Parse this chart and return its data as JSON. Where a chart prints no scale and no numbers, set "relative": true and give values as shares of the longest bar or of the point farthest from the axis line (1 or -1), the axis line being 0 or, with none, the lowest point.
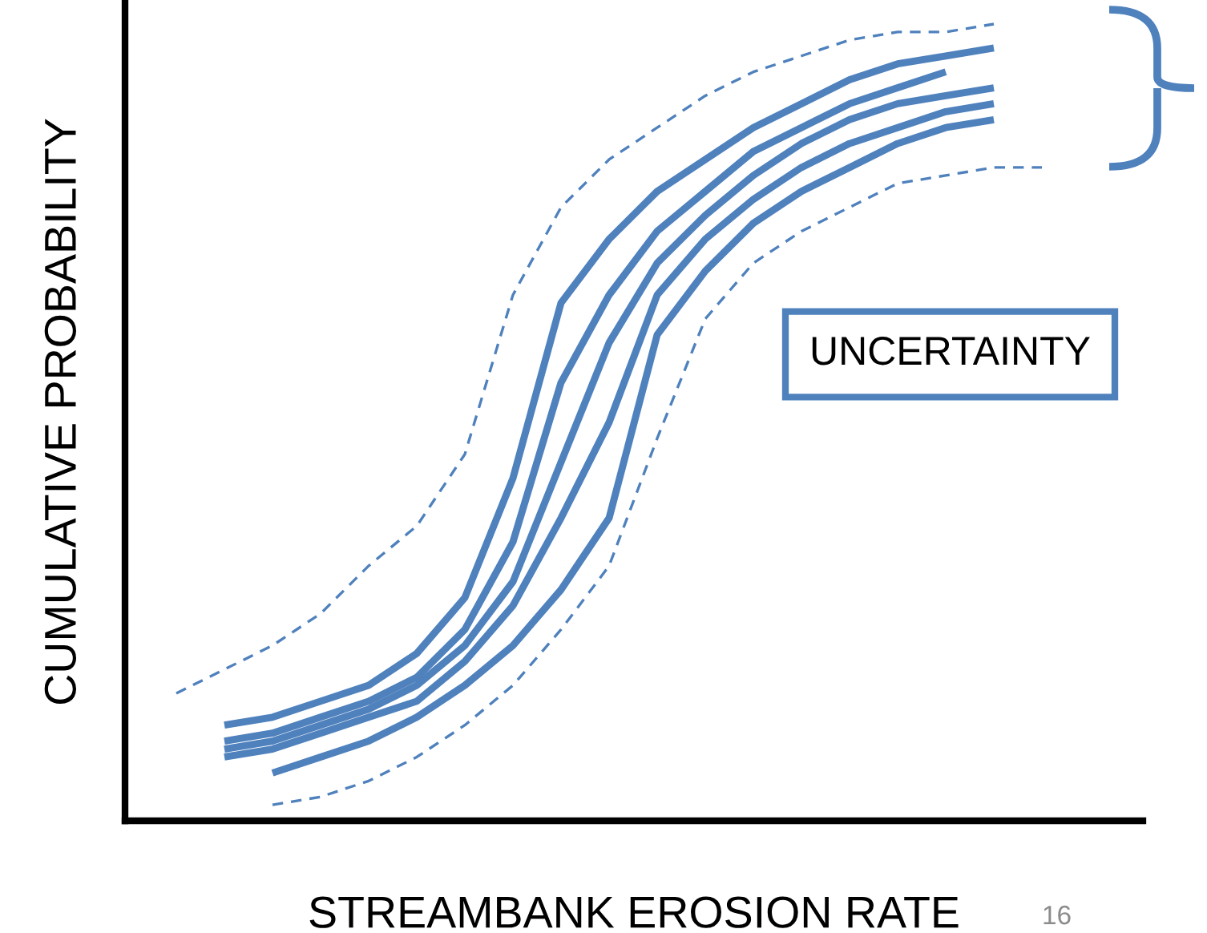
{
  "chart_data": {
    "type": "line",
    "relative": true,
    "legend": false,
    "grid": false,
    "marker": "none",
    "xlabel": "STREAMBANK EROSION RATE",
    "ylabel": "CUMULATIVE PROBABILITY",
    "annotations": [
      "UNCERTAINTY",
      "16"
    ],
    "categories": [
      null,
      null,
      null,
      null,
      null,
      null,
      null,
      null,
      null,
      null,
      null,
      null,
      null,
      null,
      null,
      null,
      null,
      null,
      null
    ],
    "series": [
      {
        "color": "#4f81bd",
        "line_style": "dashed",
        "values": [
          0.16,
          0.19,
          0.22,
          0.26,
          0.32,
          0.37,
          0.46,
          0.66,
          0.77,
          0.83,
          0.87,
          0.91,
          0.94,
          0.96,
          0.98,
          0.99,
          0.99,
          1.0,
          null
        ]
      },
      {
        "color": "#4f81bd",
        "line_style": "solid",
        "values": [
          null,
          0.12,
          0.13,
          0.15,
          0.17,
          0.21,
          0.28,
          0.43,
          0.65,
          0.73,
          0.79,
          0.83,
          0.87,
          0.9,
          0.93,
          0.95,
          0.96,
          0.97,
          null
        ]
      },
      {
        "color": "#4f81bd",
        "line_style": "solid",
        "values": [
          null,
          0.1,
          0.11,
          0.13,
          0.15,
          0.18,
          0.24,
          0.35,
          0.55,
          0.66,
          0.74,
          0.79,
          0.84,
          0.87,
          0.9,
          0.92,
          0.94,
          null,
          null
        ]
      },
      {
        "color": "#4f81bd",
        "line_style": "solid",
        "values": [
          null,
          0.09,
          0.1,
          0.12,
          0.14,
          0.17,
          0.22,
          0.3,
          0.45,
          0.6,
          0.7,
          0.76,
          0.81,
          0.85,
          0.88,
          0.9,
          0.91,
          0.92,
          null
        ]
      },
      {
        "color": "#4f81bd",
        "line_style": "solid",
        "values": [
          null,
          0.08,
          0.09,
          0.11,
          0.13,
          0.15,
          0.2,
          0.27,
          0.38,
          0.5,
          0.66,
          0.73,
          0.78,
          0.82,
          0.85,
          0.87,
          0.89,
          0.9,
          null
        ]
      },
      {
        "color": "#4f81bd",
        "line_style": "solid",
        "values": [
          null,
          null,
          0.06,
          0.08,
          0.1,
          0.13,
          0.17,
          0.22,
          0.29,
          0.38,
          0.61,
          0.69,
          0.75,
          0.79,
          0.82,
          0.85,
          0.87,
          0.88,
          null
        ]
      },
      {
        "color": "#4f81bd",
        "line_style": "dashed",
        "values": [
          null,
          null,
          0.02,
          0.03,
          0.05,
          0.08,
          0.12,
          0.17,
          0.24,
          0.32,
          0.48,
          0.63,
          0.7,
          0.74,
          0.77,
          0.8,
          0.81,
          0.82,
          0.82
        ]
      }
    ]
  }
}
